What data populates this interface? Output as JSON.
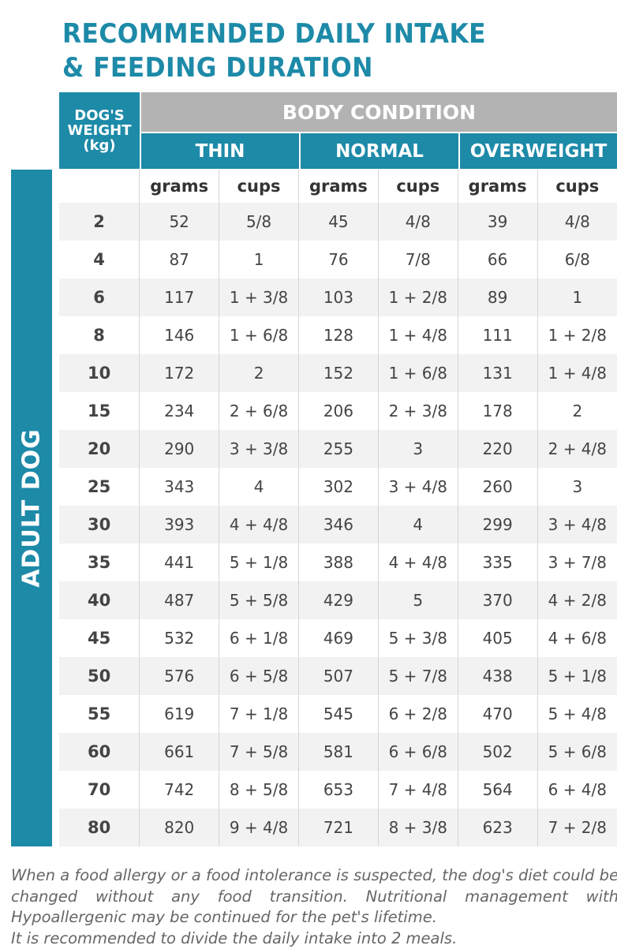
{
  "title": {
    "line1": "RECOMMENDED DAILY INTAKE",
    "line2": "& FEEDING DURATION"
  },
  "table": {
    "weight_header": [
      "DOG'S",
      "WEIGHT",
      "(kg)"
    ],
    "body_condition": "BODY CONDITION",
    "conditions": [
      "THIN",
      "NORMAL",
      "OVERWEIGHT"
    ],
    "units": [
      "grams",
      "cups",
      "grams",
      "cups",
      "grams",
      "cups"
    ],
    "side_label": "ADULT DOG",
    "rows": [
      [
        "2",
        "52",
        "5/8",
        "45",
        "4/8",
        "39",
        "4/8"
      ],
      [
        "4",
        "87",
        "1",
        "76",
        "7/8",
        "66",
        "6/8"
      ],
      [
        "6",
        "117",
        "1 + 3/8",
        "103",
        "1 + 2/8",
        "89",
        "1"
      ],
      [
        "8",
        "146",
        "1 + 6/8",
        "128",
        "1 + 4/8",
        "111",
        "1 + 2/8"
      ],
      [
        "10",
        "172",
        "2",
        "152",
        "1 + 6/8",
        "131",
        "1 + 4/8"
      ],
      [
        "15",
        "234",
        "2 + 6/8",
        "206",
        "2 + 3/8",
        "178",
        "2"
      ],
      [
        "20",
        "290",
        "3 + 3/8",
        "255",
        "3",
        "220",
        "2 + 4/8"
      ],
      [
        "25",
        "343",
        "4",
        "302",
        "3 + 4/8",
        "260",
        "3"
      ],
      [
        "30",
        "393",
        "4 + 4/8",
        "346",
        "4",
        "299",
        "3 + 4/8"
      ],
      [
        "35",
        "441",
        "5 + 1/8",
        "388",
        "4 + 4/8",
        "335",
        "3 + 7/8"
      ],
      [
        "40",
        "487",
        "5 + 5/8",
        "429",
        "5",
        "370",
        "4 + 2/8"
      ],
      [
        "45",
        "532",
        "6 + 1/8",
        "469",
        "5 + 3/8",
        "405",
        "4 + 6/8"
      ],
      [
        "50",
        "576",
        "6 + 5/8",
        "507",
        "5 + 7/8",
        "438",
        "5 + 1/8"
      ],
      [
        "55",
        "619",
        "7 + 1/8",
        "545",
        "6 + 2/8",
        "470",
        "5 + 4/8"
      ],
      [
        "60",
        "661",
        "7 + 5/8",
        "581",
        "6 + 6/8",
        "502",
        "5 + 6/8"
      ],
      [
        "70",
        "742",
        "8 + 5/8",
        "653",
        "7 + 4/8",
        "564",
        "6 + 4/8"
      ],
      [
        "80",
        "820",
        "9 + 4/8",
        "721",
        "8 + 3/8",
        "623",
        "7 + 2/8"
      ]
    ]
  },
  "notes": {
    "p1": "When a food allergy or a food intolerance is suspected, the dog's diet could be changed without any food transition. Nutritional management with Hypoallergenic may be continued for the pet's lifetime.",
    "p2": "It is recommended to divide the daily intake into 2 meals."
  },
  "colors": {
    "accent": "#1d8aa8",
    "header_gray": "#b3b3b3",
    "row_shade": "#f2f2f2"
  }
}
